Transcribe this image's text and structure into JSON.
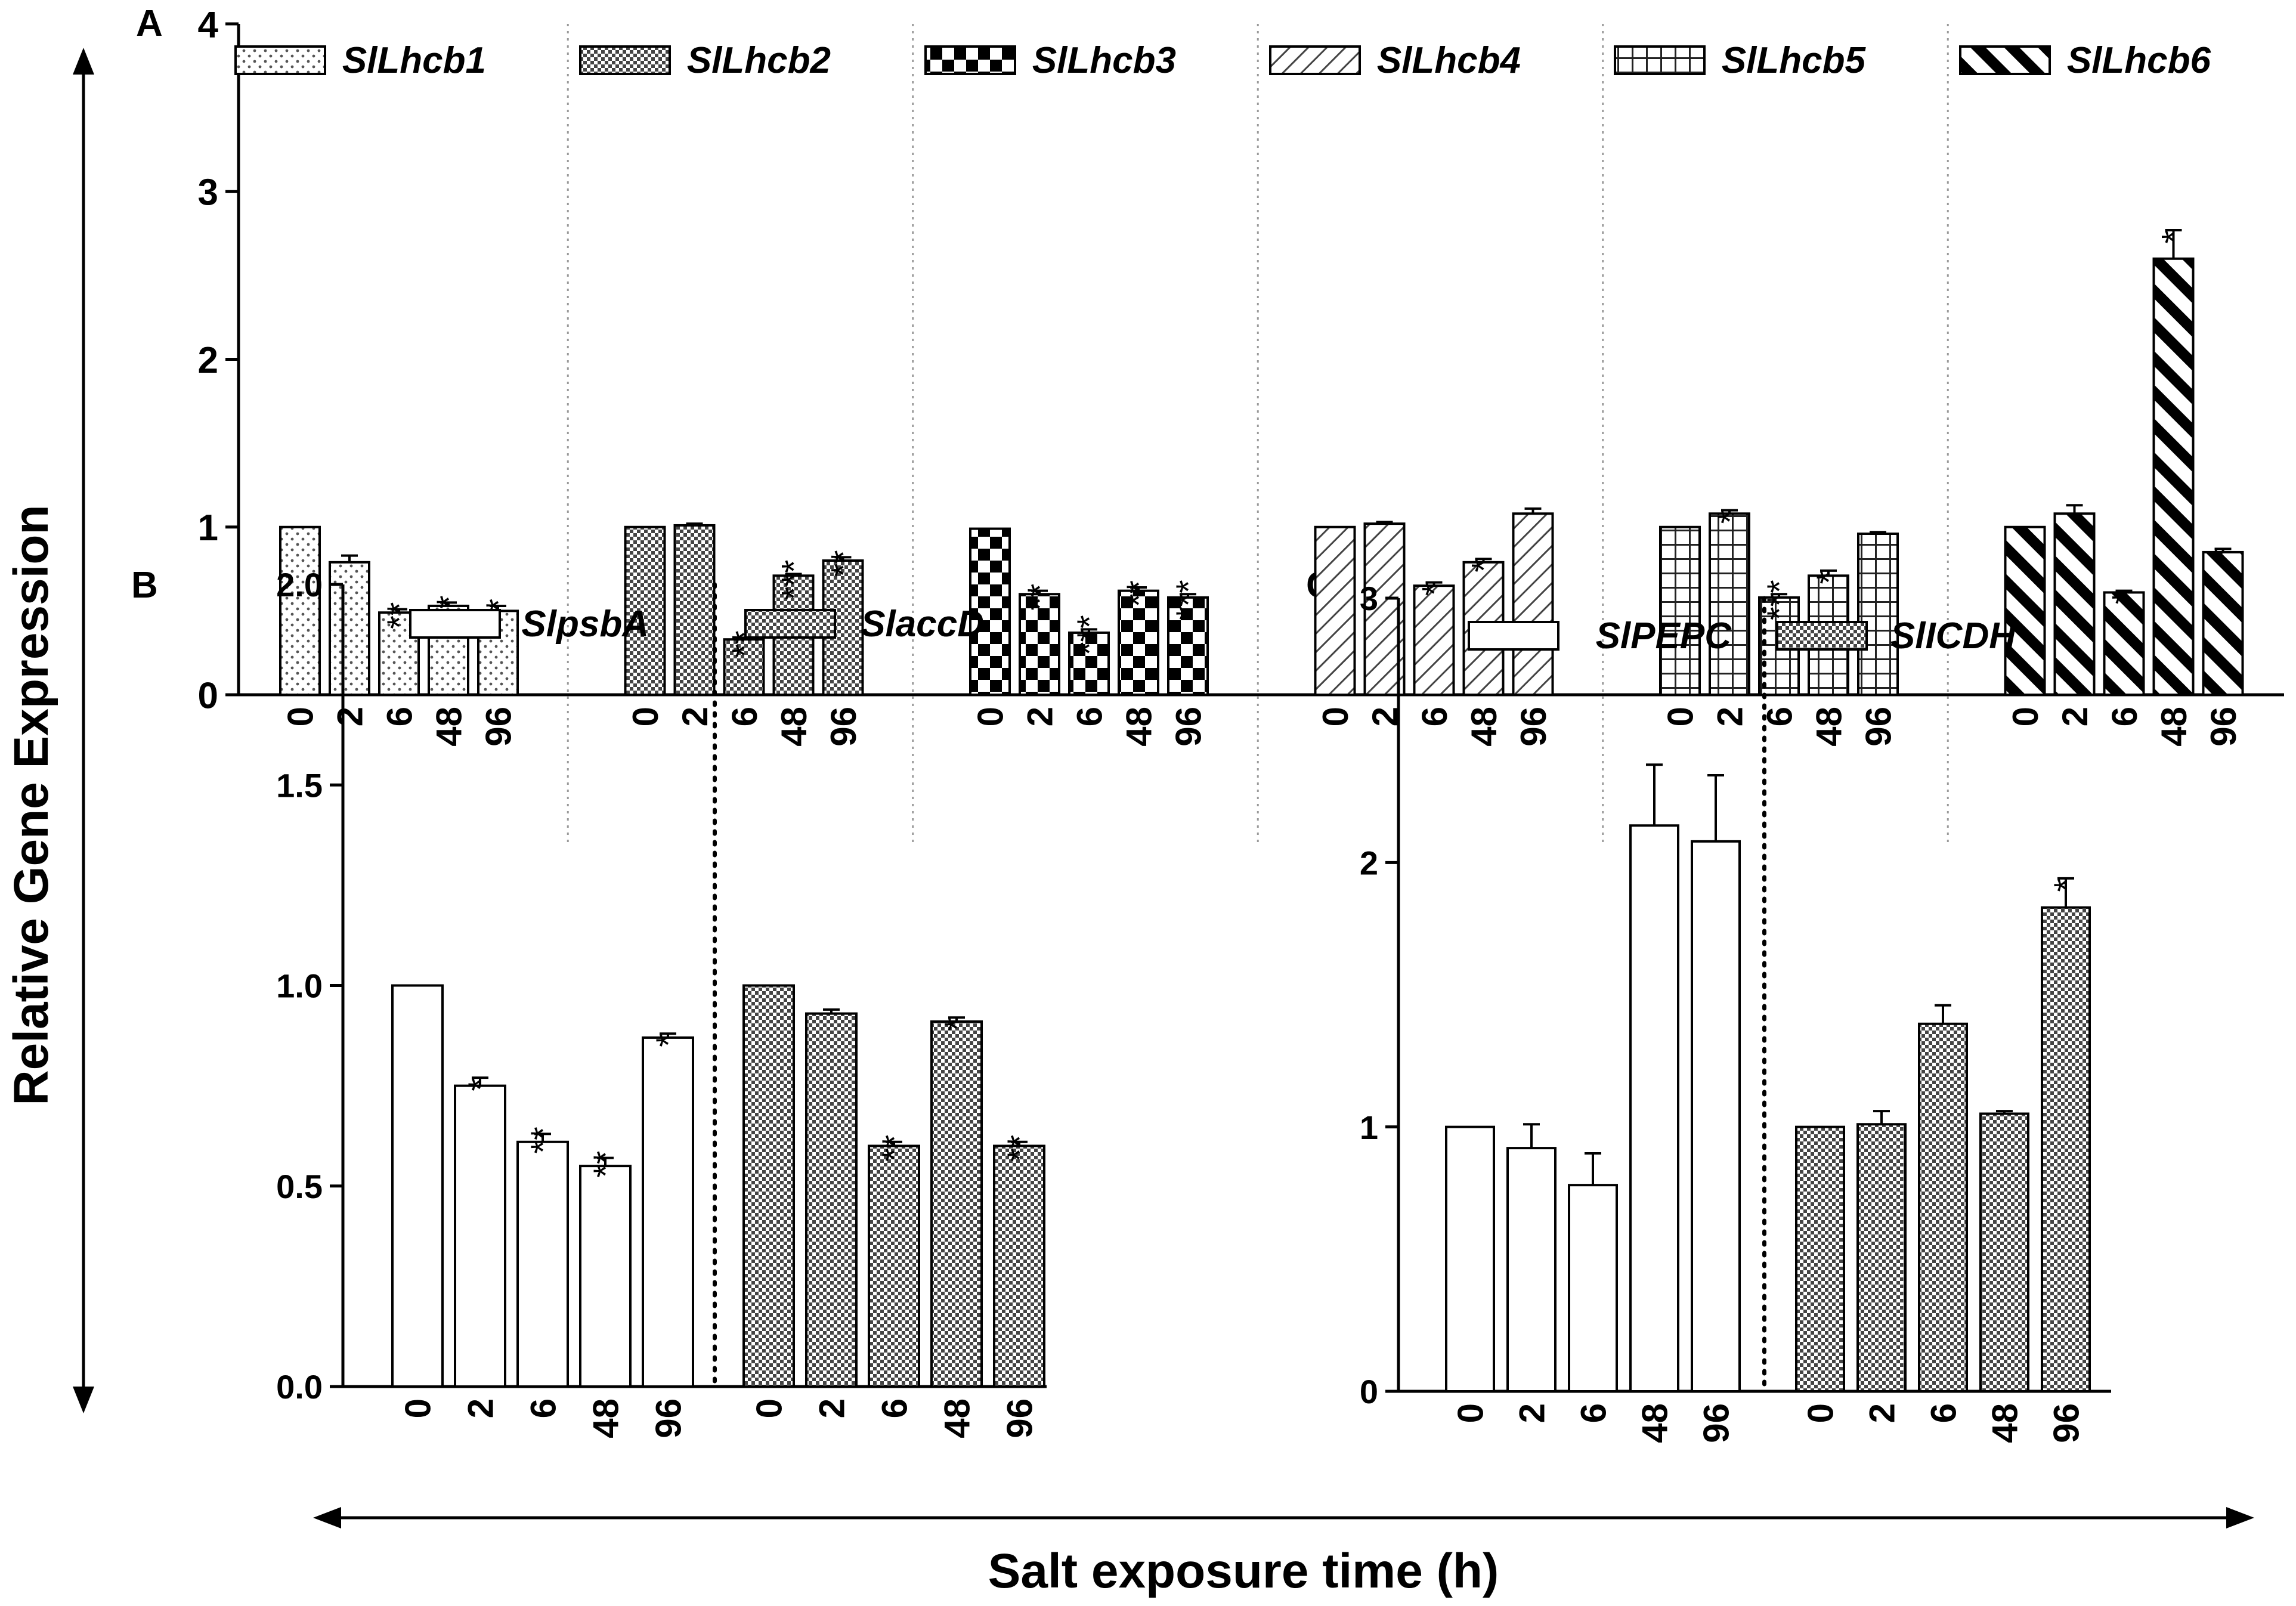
{
  "figure": {
    "shared_ylabel": "Relative Gene Expression",
    "shared_xlabel": "Salt exposure time (h)"
  },
  "chart_data": [
    {
      "panel": "A",
      "type": "bar",
      "ylim": [
        0,
        4
      ],
      "yticks": [
        "0",
        "1",
        "2",
        "3",
        "4"
      ],
      "categories": [
        "0",
        "2",
        "6",
        "48",
        "96"
      ],
      "legend_position": "top",
      "series": [
        {
          "name": "SlLhcb1",
          "pattern": "dots",
          "values": [
            1.0,
            0.79,
            0.49,
            0.53,
            0.5
          ],
          "errors": [
            0,
            0.04,
            0.02,
            0.02,
            0.03
          ],
          "sig": [
            "",
            "",
            "**",
            "**",
            "**"
          ]
        },
        {
          "name": "SlLhcb2",
          "pattern": "dense-check",
          "values": [
            1.0,
            1.01,
            0.33,
            0.71,
            0.8
          ],
          "errors": [
            0,
            0.01,
            0.01,
            0.01,
            0.02
          ],
          "sig": [
            "",
            "",
            "**",
            "***",
            "**"
          ]
        },
        {
          "name": "SlLhcb3",
          "pattern": "checker",
          "values": [
            0.99,
            0.6,
            0.37,
            0.62,
            0.58
          ],
          "errors": [
            0,
            0.02,
            0.02,
            0.02,
            0.02
          ],
          "sig": [
            "",
            "**",
            "***",
            "**",
            "***"
          ]
        },
        {
          "name": "SlLhcb4",
          "pattern": "diag-thin",
          "values": [
            1.0,
            1.02,
            0.65,
            0.79,
            1.08
          ],
          "errors": [
            0,
            0.01,
            0.02,
            0.02,
            0.03
          ],
          "sig": [
            "",
            "",
            "*",
            "*",
            ""
          ]
        },
        {
          "name": "SlLhcb5",
          "pattern": "grid",
          "values": [
            1.0,
            1.08,
            0.58,
            0.71,
            0.96
          ],
          "errors": [
            0,
            0.02,
            0.02,
            0.03,
            0.01
          ],
          "sig": [
            "",
            "*",
            "***",
            "*",
            ""
          ]
        },
        {
          "name": "SlLhcb6",
          "pattern": "diag-thick",
          "values": [
            1.0,
            1.08,
            0.61,
            2.6,
            0.85
          ],
          "errors": [
            0,
            0.05,
            0.01,
            0.17,
            0.02
          ],
          "sig": [
            "",
            "",
            "*",
            "*",
            "*"
          ]
        }
      ]
    },
    {
      "panel": "B",
      "type": "bar",
      "ylim": [
        0,
        2.0
      ],
      "yticks": [
        "0.0",
        "0.5",
        "1.0",
        "1.5",
        "2.0"
      ],
      "categories": [
        "0",
        "2",
        "6",
        "48",
        "96"
      ],
      "legend_position": "top",
      "series": [
        {
          "name": "SlpsbA",
          "pattern": "plain",
          "values": [
            1.0,
            0.75,
            0.61,
            0.55,
            0.87
          ],
          "errors": [
            0,
            0.02,
            0.02,
            0.02,
            0.01
          ],
          "sig": [
            "",
            "*",
            "**",
            "**",
            "*"
          ]
        },
        {
          "name": "SlaccD",
          "pattern": "dense-check",
          "values": [
            1.0,
            0.93,
            0.6,
            0.91,
            0.6
          ],
          "errors": [
            0,
            0.01,
            0.01,
            0.01,
            0.01
          ],
          "sig": [
            "",
            "",
            "**",
            "*",
            "**"
          ]
        }
      ]
    },
    {
      "panel": "C",
      "type": "bar",
      "ylim": [
        0,
        3
      ],
      "yticks": [
        "0",
        "1",
        "2",
        "3"
      ],
      "categories": [
        "0",
        "2",
        "6",
        "48",
        "96"
      ],
      "legend_position": "top",
      "series": [
        {
          "name": "SlPEPC",
          "pattern": "plain",
          "values": [
            1.0,
            0.92,
            0.78,
            2.14,
            2.08
          ],
          "errors": [
            0,
            0.09,
            0.12,
            0.23,
            0.25
          ],
          "sig": [
            "",
            "",
            "",
            "",
            ""
          ]
        },
        {
          "name": "SlICDH",
          "pattern": "dense-check",
          "values": [
            1.0,
            1.01,
            1.39,
            1.05,
            1.83
          ],
          "errors": [
            0,
            0.05,
            0.07,
            0.01,
            0.11
          ],
          "sig": [
            "",
            "",
            "",
            "",
            "*"
          ]
        }
      ]
    }
  ]
}
